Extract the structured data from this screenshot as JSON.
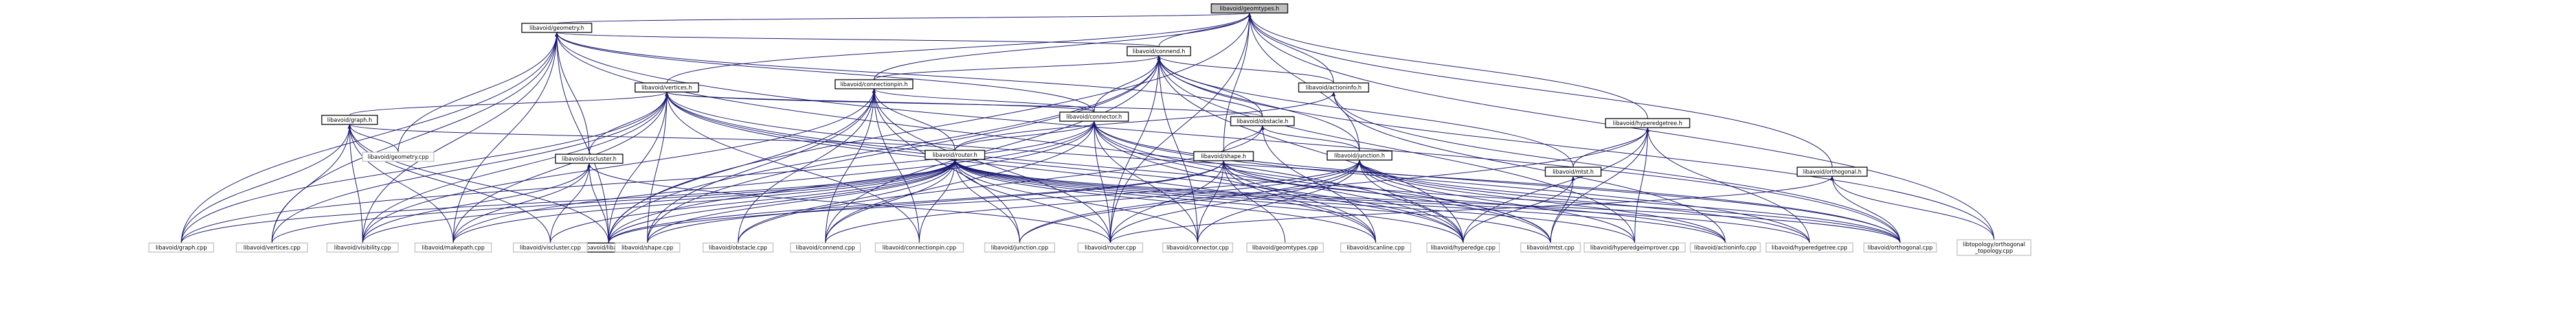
{
  "diagram": {
    "nodes": [
      {
        "id": "geomtypes",
        "label": "libavoid/geomtypes.h",
        "kind": "root"
      },
      {
        "id": "geometry_h",
        "label": "libavoid/geometry.h",
        "kind": "header"
      },
      {
        "id": "connend_h",
        "label": "libavoid/connend.h",
        "kind": "header"
      },
      {
        "id": "viscluster_h",
        "label": "libavoid/viscluster.h",
        "kind": "header"
      },
      {
        "id": "vertices_h",
        "label": "libavoid/vertices.h",
        "kind": "header"
      },
      {
        "id": "connectionpin_h",
        "label": "libavoid/connectionpin.h",
        "kind": "header"
      },
      {
        "id": "actioninfo_h",
        "label": "libavoid/actioninfo.h",
        "kind": "header"
      },
      {
        "id": "graph_h",
        "label": "libavoid/graph.h",
        "kind": "header"
      },
      {
        "id": "connector_h",
        "label": "libavoid/connector.h",
        "kind": "header"
      },
      {
        "id": "obstacle_h",
        "label": "libavoid/obstacle.h",
        "kind": "header"
      },
      {
        "id": "hyperedgetree_h",
        "label": "libavoid/hyperedgetree.h",
        "kind": "header"
      },
      {
        "id": "router_h",
        "label": "libavoid/router.h",
        "kind": "header"
      },
      {
        "id": "shape_h",
        "label": "libavoid/shape.h",
        "kind": "header"
      },
      {
        "id": "junction_h",
        "label": "libavoid/junction.h",
        "kind": "header"
      },
      {
        "id": "mtst_h",
        "label": "libavoid/mtst.h",
        "kind": "header"
      },
      {
        "id": "orthogonal_h",
        "label": "libavoid/orthogonal.h",
        "kind": "header"
      },
      {
        "id": "geometry_cpp",
        "label": "libavoid/geometry.cpp",
        "kind": "source"
      },
      {
        "id": "libavoid_h",
        "label": "libavoid/libavoid.h",
        "kind": "boxed"
      },
      {
        "id": "graph_cpp",
        "label": "libavoid/graph.cpp",
        "kind": "source"
      },
      {
        "id": "vertices_cpp",
        "label": "libavoid/vertices.cpp",
        "kind": "source"
      },
      {
        "id": "visibility_cpp",
        "label": "libavoid/visibility.cpp",
        "kind": "source"
      },
      {
        "id": "makepath_cpp",
        "label": "libavoid/makepath.cpp",
        "kind": "source"
      },
      {
        "id": "viscluster_cpp",
        "label": "libavoid/viscluster.cpp",
        "kind": "source"
      },
      {
        "id": "shape_cpp",
        "label": "libavoid/shape.cpp",
        "kind": "source"
      },
      {
        "id": "obstacle_cpp",
        "label": "libavoid/obstacle.cpp",
        "kind": "source"
      },
      {
        "id": "connend_cpp",
        "label": "libavoid/connend.cpp",
        "kind": "source"
      },
      {
        "id": "connectionpin_cpp",
        "label": "libavoid/connectionpin.cpp",
        "kind": "source"
      },
      {
        "id": "junction_cpp",
        "label": "libavoid/junction.cpp",
        "kind": "source"
      },
      {
        "id": "router_cpp",
        "label": "libavoid/router.cpp",
        "kind": "source"
      },
      {
        "id": "connector_cpp",
        "label": "libavoid/connector.cpp",
        "kind": "source"
      },
      {
        "id": "geomtypes_cpp",
        "label": "libavoid/geomtypes.cpp",
        "kind": "source"
      },
      {
        "id": "scanline_cpp",
        "label": "libavoid/scanline.cpp",
        "kind": "source"
      },
      {
        "id": "hyperedge_cpp",
        "label": "libavoid/hyperedge.cpp",
        "kind": "source"
      },
      {
        "id": "mtst_cpp",
        "label": "libavoid/mtst.cpp",
        "kind": "source"
      },
      {
        "id": "hyperedgeimprover_cpp",
        "label": "libavoid/hyperedgeimprover.cpp",
        "kind": "source"
      },
      {
        "id": "actioninfo_cpp",
        "label": "libavoid/actioninfo.cpp",
        "kind": "source"
      },
      {
        "id": "hyperedgetree_cpp",
        "label": "libavoid/hyperedgetree.cpp",
        "kind": "source"
      },
      {
        "id": "orthogonal_cpp",
        "label": "libavoid/orthogonal.cpp",
        "kind": "source"
      },
      {
        "id": "topology_cpp",
        "label": "libtopology/orthogonal\n_topology.cpp",
        "kind": "source"
      }
    ],
    "edges": [
      [
        "geometry_h",
        "geomtypes"
      ],
      [
        "connend_h",
        "geomtypes"
      ],
      [
        "vertices_h",
        "geomtypes"
      ],
      [
        "connectionpin_h",
        "geomtypes"
      ],
      [
        "actioninfo_h",
        "geomtypes"
      ],
      [
        "hyperedgetree_h",
        "geomtypes"
      ],
      [
        "junction_h",
        "geomtypes"
      ],
      [
        "shape_h",
        "geomtypes"
      ],
      [
        "orthogonal_h",
        "geomtypes"
      ],
      [
        "libavoid_h",
        "geomtypes"
      ],
      [
        "router_cpp",
        "geomtypes"
      ],
      [
        "topology_cpp",
        "geomtypes"
      ],
      [
        "connend_h",
        "geometry_h"
      ],
      [
        "viscluster_h",
        "geometry_h"
      ],
      [
        "connector_h",
        "geometry_h"
      ],
      [
        "obstacle_h",
        "geometry_h"
      ],
      [
        "geometry_cpp",
        "geometry_h"
      ],
      [
        "graph_cpp",
        "geometry_h"
      ],
      [
        "vertices_cpp",
        "geometry_h"
      ],
      [
        "visibility_cpp",
        "geometry_h"
      ],
      [
        "makepath_cpp",
        "geometry_h"
      ],
      [
        "hyperedge_cpp",
        "geometry_h"
      ],
      [
        "orthogonal_cpp",
        "geometry_h"
      ],
      [
        "libavoid_h",
        "geometry_h"
      ],
      [
        "connectionpin_h",
        "connend_h"
      ],
      [
        "actioninfo_h",
        "connend_h"
      ],
      [
        "connector_h",
        "connend_h"
      ],
      [
        "obstacle_h",
        "connend_h"
      ],
      [
        "junction_h",
        "connend_h"
      ],
      [
        "libavoid_h",
        "connend_h"
      ],
      [
        "connend_cpp",
        "connend_h"
      ],
      [
        "router_cpp",
        "connend_h"
      ],
      [
        "connector_cpp",
        "connend_h"
      ],
      [
        "shape_cpp",
        "connend_h"
      ],
      [
        "hyperedge_cpp",
        "connend_h"
      ],
      [
        "mtst_h",
        "connend_h"
      ],
      [
        "hyperedgeimprover_cpp",
        "connend_h"
      ],
      [
        "topology_cpp",
        "connend_h"
      ],
      [
        "viscluster_h",
        "vertices_h"
      ],
      [
        "graph_h",
        "vertices_h"
      ],
      [
        "connector_h",
        "vertices_h"
      ],
      [
        "obstacle_h",
        "vertices_h"
      ],
      [
        "libavoid_h",
        "vertices_h"
      ],
      [
        "vertices_cpp",
        "vertices_h"
      ],
      [
        "graph_cpp",
        "vertices_h"
      ],
      [
        "makepath_cpp",
        "vertices_h"
      ],
      [
        "shape_cpp",
        "vertices_h"
      ],
      [
        "connectionpin_cpp",
        "vertices_h"
      ],
      [
        "scanline_cpp",
        "vertices_h"
      ],
      [
        "hyperedge_cpp",
        "vertices_h"
      ],
      [
        "orthogonal_cpp",
        "vertices_h"
      ],
      [
        "mtst_cpp",
        "vertices_h"
      ],
      [
        "visibility_cpp",
        "vertices_h"
      ],
      [
        "connector_h",
        "connectionpin_h"
      ],
      [
        "router_h",
        "connectionpin_h"
      ],
      [
        "libavoid_h",
        "connectionpin_h"
      ],
      [
        "shape_cpp",
        "connectionpin_h"
      ],
      [
        "obstacle_cpp",
        "connectionpin_h"
      ],
      [
        "connend_cpp",
        "connectionpin_h"
      ],
      [
        "connectionpin_cpp",
        "connectionpin_h"
      ],
      [
        "junction_cpp",
        "connectionpin_h"
      ],
      [
        "router_cpp",
        "connectionpin_h"
      ],
      [
        "visibility_cpp",
        "connectionpin_h"
      ],
      [
        "router_h",
        "actioninfo_h"
      ],
      [
        "actioninfo_cpp",
        "actioninfo_h"
      ],
      [
        "orthogonal_cpp",
        "actioninfo_h"
      ],
      [
        "geometry_cpp",
        "graph_h"
      ],
      [
        "graph_cpp",
        "graph_h"
      ],
      [
        "vertices_cpp",
        "graph_h"
      ],
      [
        "visibility_cpp",
        "graph_h"
      ],
      [
        "makepath_cpp",
        "graph_h"
      ],
      [
        "viscluster_cpp",
        "graph_h"
      ],
      [
        "router_h",
        "graph_h"
      ],
      [
        "libavoid_h",
        "graph_h"
      ],
      [
        "router_h",
        "connector_h"
      ],
      [
        "libavoid_h",
        "connector_h"
      ],
      [
        "connector_cpp",
        "connector_h"
      ],
      [
        "connend_cpp",
        "connector_h"
      ],
      [
        "router_cpp",
        "connector_h"
      ],
      [
        "hyperedge_cpp",
        "connector_h"
      ],
      [
        "scanline_cpp",
        "connector_h"
      ],
      [
        "graph_cpp",
        "connector_h"
      ],
      [
        "mtst_cpp",
        "connector_h"
      ],
      [
        "hyperedgetree_cpp",
        "connector_h"
      ],
      [
        "orthogonal_cpp",
        "connector_h"
      ],
      [
        "makepath_cpp",
        "connector_h"
      ],
      [
        "shape_h",
        "obstacle_h"
      ],
      [
        "junction_h",
        "obstacle_h"
      ],
      [
        "obstacle_cpp",
        "obstacle_h"
      ],
      [
        "scanline_cpp",
        "obstacle_h"
      ],
      [
        "mtst_h",
        "hyperedgetree_h"
      ],
      [
        "hyperedgetree_cpp",
        "hyperedgetree_h"
      ],
      [
        "hyperedgeimprover_cpp",
        "hyperedgetree_h"
      ],
      [
        "hyperedge_cpp",
        "hyperedgetree_h"
      ],
      [
        "mtst_cpp",
        "hyperedgetree_h"
      ],
      [
        "junction_cpp",
        "hyperedgetree_h"
      ],
      [
        "viscluster_cpp",
        "router_h"
      ],
      [
        "libavoid_h",
        "router_h"
      ],
      [
        "graph_cpp",
        "router_h"
      ],
      [
        "vertices_cpp",
        "router_h"
      ],
      [
        "visibility_cpp",
        "router_h"
      ],
      [
        "makepath_cpp",
        "router_h"
      ],
      [
        "shape_cpp",
        "router_h"
      ],
      [
        "obstacle_cpp",
        "router_h"
      ],
      [
        "connend_cpp",
        "router_h"
      ],
      [
        "connectionpin_cpp",
        "router_h"
      ],
      [
        "junction_cpp",
        "router_h"
      ],
      [
        "router_cpp",
        "router_h"
      ],
      [
        "connector_cpp",
        "router_h"
      ],
      [
        "scanline_cpp",
        "router_h"
      ],
      [
        "hyperedge_cpp",
        "router_h"
      ],
      [
        "mtst_cpp",
        "router_h"
      ],
      [
        "hyperedgeimprover_cpp",
        "router_h"
      ],
      [
        "actioninfo_cpp",
        "router_h"
      ],
      [
        "hyperedgetree_cpp",
        "router_h"
      ],
      [
        "orthogonal_cpp",
        "router_h"
      ],
      [
        "libavoid_h",
        "shape_h"
      ],
      [
        "shape_cpp",
        "shape_h"
      ],
      [
        "router_cpp",
        "shape_h"
      ],
      [
        "connector_cpp",
        "shape_h"
      ],
      [
        "scanline_cpp",
        "shape_h"
      ],
      [
        "hyperedge_cpp",
        "shape_h"
      ],
      [
        "orthogonal_cpp",
        "shape_h"
      ],
      [
        "actioninfo_cpp",
        "shape_h"
      ],
      [
        "geomtypes_cpp",
        "shape_h"
      ],
      [
        "libavoid_h",
        "junction_h"
      ],
      [
        "junction_cpp",
        "junction_h"
      ],
      [
        "router_cpp",
        "junction_h"
      ],
      [
        "connector_cpp",
        "junction_h"
      ],
      [
        "hyperedge_cpp",
        "junction_h"
      ],
      [
        "mtst_cpp",
        "junction_h"
      ],
      [
        "hyperedgeimprover_cpp",
        "junction_h"
      ],
      [
        "hyperedgetree_cpp",
        "junction_h"
      ],
      [
        "actioninfo_cpp",
        "junction_h"
      ],
      [
        "orthogonal_cpp",
        "junction_h"
      ],
      [
        "connend_cpp",
        "junction_h"
      ],
      [
        "mtst_cpp",
        "mtst_h"
      ],
      [
        "hyperedge_cpp",
        "mtst_h"
      ],
      [
        "orthogonal_cpp",
        "orthogonal_h"
      ],
      [
        "topology_cpp",
        "orthogonal_h"
      ],
      [
        "router_cpp",
        "orthogonal_h"
      ],
      [
        "viscluster_cpp",
        "viscluster_h"
      ],
      [
        "libavoid_h",
        "viscluster_h"
      ],
      [
        "router_cpp",
        "viscluster_h"
      ],
      [
        "visibility_cpp",
        "viscluster_h"
      ],
      [
        "makepath_cpp",
        "viscluster_h"
      ]
    ]
  }
}
